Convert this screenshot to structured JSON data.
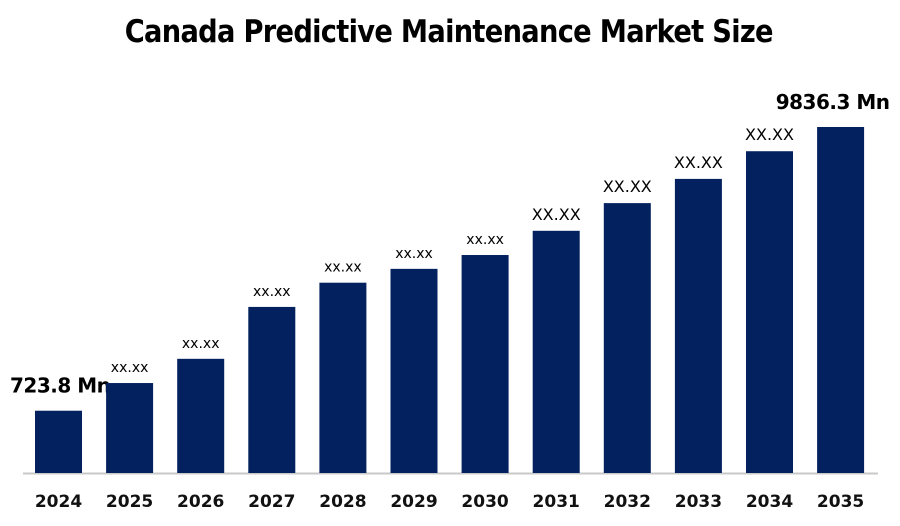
{
  "chart_data": {
    "type": "bar",
    "title": "Canada Predictive Maintenance Market Size",
    "xlabel": "",
    "ylabel": "",
    "categories": [
      "2024",
      "2025",
      "2026",
      "2027",
      "2028",
      "2029",
      "2030",
      "2031",
      "2032",
      "2033",
      "2034",
      "2035"
    ],
    "data_labels": [
      "723.8 Mn",
      "xx.xx",
      "xx.xx",
      "xx.xx",
      "xx.xx",
      "xx.xx",
      "xx.xx",
      "XX.XX",
      "XX.XX",
      "XX.XX",
      "XX.XX",
      "9836.3 Mn"
    ],
    "values": [
      723.8,
      null,
      null,
      null,
      null,
      null,
      null,
      null,
      null,
      null,
      null,
      9836.3
    ],
    "relative_bar_level": [
      0.18,
      0.26,
      0.33,
      0.48,
      0.55,
      0.59,
      0.63,
      0.7,
      0.78,
      0.85,
      0.93,
      1.0
    ],
    "unit": "Mn",
    "grid": false,
    "legend": "none",
    "bar_color": "#03215F",
    "axis_color": "#C8C8C8"
  }
}
